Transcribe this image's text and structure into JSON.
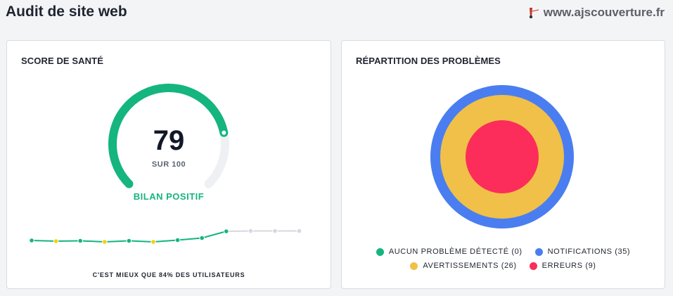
{
  "header": {
    "title": "Audit de site web",
    "site": "www.ajscouverture.fr"
  },
  "health": {
    "title": "SCORE DE SANTÉ",
    "score": "79",
    "score_sub": "SUR 100",
    "score_value": 79,
    "score_max": 100,
    "status": "BILAN POSITIF",
    "comparison": "C'EST MIEUX QUE 84% DES UTILISATEURS",
    "trend_points": [
      {
        "level": "good"
      },
      {
        "level": "warn"
      },
      {
        "level": "good"
      },
      {
        "level": "warn"
      },
      {
        "level": "good"
      },
      {
        "level": "warn"
      },
      {
        "level": "good"
      },
      {
        "level": "good"
      },
      {
        "level": "good"
      },
      {
        "level": "empty"
      },
      {
        "level": "empty"
      },
      {
        "level": "empty"
      }
    ]
  },
  "issues": {
    "title": "RÉPARTITION DES PROBLÈMES",
    "legend": [
      {
        "label": "AUCUN PROBLÈME DÉTECTÉ (0)",
        "color": "#14b57f"
      },
      {
        "label": "NOTIFICATIONS (35)",
        "color": "#4a7ef0"
      },
      {
        "label": "AVERTISSEMENTS (26)",
        "color": "#f0c048"
      },
      {
        "label": "ERREURS (9)",
        "color": "#fc2d5a"
      }
    ]
  },
  "colors": {
    "good": "#14b57f",
    "warn": "#f5d000",
    "empty": "#d5d8de",
    "gauge_track": "#eef0f4"
  }
}
